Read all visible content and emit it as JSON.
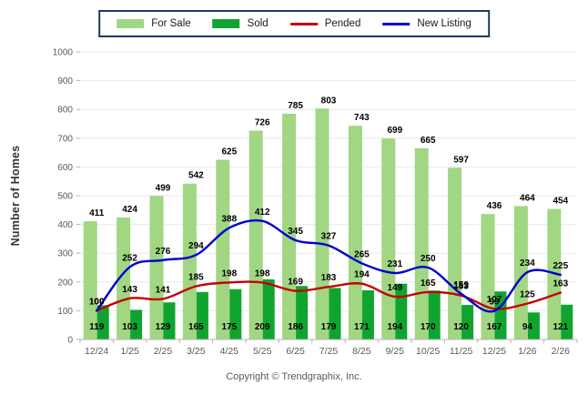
{
  "chart_data": {
    "type": "combo",
    "title": "",
    "ylabel": "Number of Homes",
    "xlabel": "",
    "ylim": [
      0,
      1000
    ],
    "ytick_step": 100,
    "grid": true,
    "legend_position": "top-center",
    "categories": [
      "12/24",
      "1/25",
      "2/25",
      "3/25",
      "4/25",
      "5/25",
      "6/25",
      "7/25",
      "8/25",
      "9/25",
      "10/25",
      "11/25",
      "12/25",
      "1/26",
      "2/26"
    ],
    "series": [
      {
        "name": "For Sale",
        "type": "bar",
        "color": "#A1D683",
        "values": [
          411,
          424,
          499,
          542,
          625,
          726,
          785,
          803,
          743,
          699,
          665,
          597,
          436,
          464,
          454
        ]
      },
      {
        "name": "Sold",
        "type": "bar",
        "color": "#0FA42F",
        "values": [
          119,
          103,
          129,
          165,
          175,
          209,
          186,
          179,
          171,
          194,
          170,
          120,
          167,
          94,
          121
        ]
      },
      {
        "name": "Pended",
        "type": "line",
        "color": "#C40000",
        "values": [
          100,
          143,
          141,
          185,
          198,
          198,
          169,
          183,
          194,
          149,
          165,
          153,
          107,
          125,
          163
        ]
      },
      {
        "name": "New Listing",
        "type": "line",
        "color": "#0000D0",
        "values": [
          100,
          252,
          276,
          294,
          388,
          412,
          345,
          327,
          265,
          231,
          250,
          159,
          99,
          234,
          225
        ]
      }
    ]
  },
  "footer": {
    "copyright": "Copyright © Trendgraphix, Inc."
  },
  "colors": {
    "legend_border": "#203864",
    "grid_line": "#E9E9E9",
    "axis_line": "#B5B5B5",
    "tick_text": "#595959",
    "value_label": "#000000",
    "background": "#FFFFFF"
  }
}
